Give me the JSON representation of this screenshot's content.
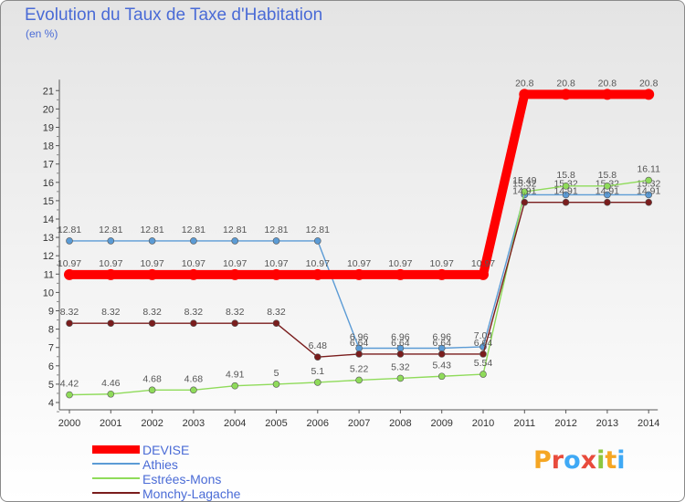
{
  "chart_data": {
    "type": "line",
    "title": "Evolution du Taux de Taxe d'Habitation",
    "subtitle": "(en %)",
    "x": [
      "2000",
      "2001",
      "2002",
      "2003",
      "2004",
      "2005",
      "2006",
      "2007",
      "2008",
      "2009",
      "2010",
      "2011",
      "2012",
      "2013",
      "2014"
    ],
    "ylim": [
      4,
      21
    ],
    "yticks": [
      4,
      5,
      6,
      7,
      8,
      9,
      10,
      11,
      12,
      13,
      14,
      15,
      16,
      17,
      18,
      19,
      20,
      21
    ],
    "grid": false,
    "legend_position": "bottom-left",
    "series": [
      {
        "name": "Athies",
        "color": "#5b9bd5",
        "values": [
          12.81,
          12.81,
          12.81,
          12.81,
          12.81,
          12.81,
          12.81,
          6.96,
          6.96,
          6.96,
          7.04,
          15.32,
          15.32,
          15.32,
          15.32
        ],
        "labels": [
          "12.81",
          "12.81",
          "12.81",
          "12.81",
          "12.81",
          "12.81",
          "12.81",
          "6.96",
          "6.96",
          "6.96",
          "7.04",
          "15.32",
          "15.32",
          "15.32",
          "15.32"
        ]
      },
      {
        "name": "Estrées-Mons",
        "color": "#8fdb5a",
        "values": [
          4.42,
          4.46,
          4.68,
          4.68,
          4.91,
          5,
          5.1,
          5.22,
          5.32,
          5.43,
          5.54,
          15.49,
          15.8,
          15.8,
          16.11
        ],
        "labels": [
          "4.42",
          "4.46",
          "4.68",
          "4.68",
          "4.91",
          "5",
          "5.1",
          "5.22",
          "5.32",
          "5.43",
          "5.54",
          "15.49",
          "15.8",
          "15.8",
          "16.11"
        ]
      },
      {
        "name": "Monchy-Lagache",
        "color": "#7a1d1d",
        "values": [
          8.32,
          8.32,
          8.32,
          8.32,
          8.32,
          8.32,
          6.48,
          6.64,
          6.64,
          6.64,
          6.64,
          14.91,
          14.91,
          14.91,
          14.91
        ],
        "labels": [
          "8.32",
          "8.32",
          "8.32",
          "8.32",
          "8.32",
          "8.32",
          "6.48",
          "6.64",
          "6.64",
          "6.64",
          "6.64",
          "14.91",
          "14.91",
          "14.91",
          "14.91"
        ]
      },
      {
        "name": "DEVISE",
        "color": "#ff0000",
        "values": [
          10.97,
          10.97,
          10.97,
          10.97,
          10.97,
          10.97,
          10.97,
          10.97,
          10.97,
          10.97,
          10.97,
          20.8,
          20.8,
          20.8,
          20.8
        ],
        "labels": [
          "10.97",
          "10.97",
          "10.97",
          "10.97",
          "10.97",
          "10.97",
          "10.97",
          "10.97",
          "10.97",
          "10.97",
          "10.97",
          "20.8",
          "20.8",
          "20.8",
          "20.8"
        ]
      }
    ],
    "legend_order": [
      "DEVISE",
      "Athies",
      "Estrées-Mons",
      "Monchy-Lagache"
    ]
  },
  "brand": {
    "letters": [
      "P",
      "r",
      "o",
      "x",
      "i",
      "t",
      "i"
    ],
    "colors": [
      "#f5a623",
      "#e84b3c",
      "#3fa9f5",
      "#e84b3c",
      "#8cc63f",
      "#f5a623",
      "#3fa9f5"
    ]
  }
}
